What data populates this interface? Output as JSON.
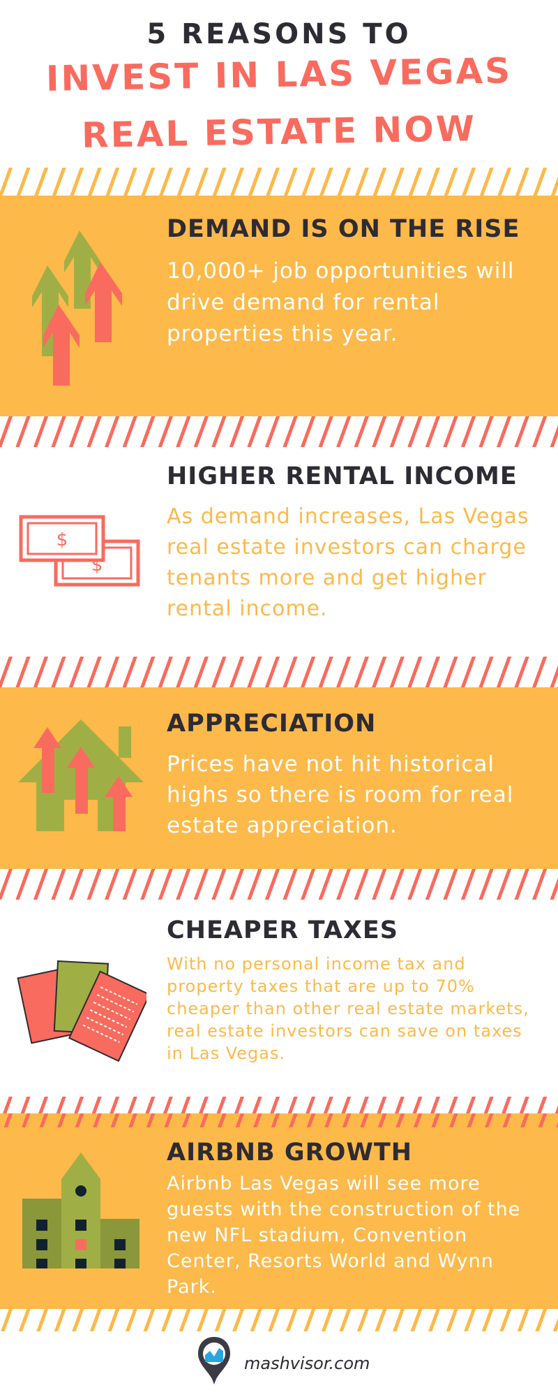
{
  "title": {
    "line1": "5 REASONS TO",
    "line2": "INVEST IN LAS VEGAS",
    "line3": "REAL ESTATE NOW"
  },
  "colors": {
    "yellow": "#fdb94a",
    "red": "#f96b5e",
    "green": "#a0af45",
    "dark": "#2d2b33"
  },
  "sections": [
    {
      "heading": "DEMAND IS ON THE RISE",
      "body": "10,000+ job opportunities will drive demand for rental properties this year.",
      "icon": "arrows-up-icon"
    },
    {
      "heading": "HIGHER RENTAL INCOME",
      "body": "As demand increases, Las Vegas real estate investors can charge tenants more and get higher rental income.",
      "icon": "dollar-bills-icon",
      "bill_symbol": "$"
    },
    {
      "heading": "APPRECIATION",
      "body": "Prices have not hit historical highs so there is room for real estate appreciation.",
      "icon": "house-arrows-icon"
    },
    {
      "heading": "CHEAPER TAXES",
      "body": "With no personal income tax and property taxes that are up to 70% cheaper than other real estate markets, real estate investors can save on taxes in Las Vegas.",
      "icon": "documents-icon"
    },
    {
      "heading": "AIRBNB GROWTH",
      "body": "Airbnb Las Vegas will see more guests with the construction of the new NFL stadium, Convention Center, Resorts World and Wynn Park.",
      "icon": "buildings-icon"
    }
  ],
  "footer": {
    "brand": "mashvisor.com",
    "icon": "mashvisor-pin-logo-icon"
  }
}
